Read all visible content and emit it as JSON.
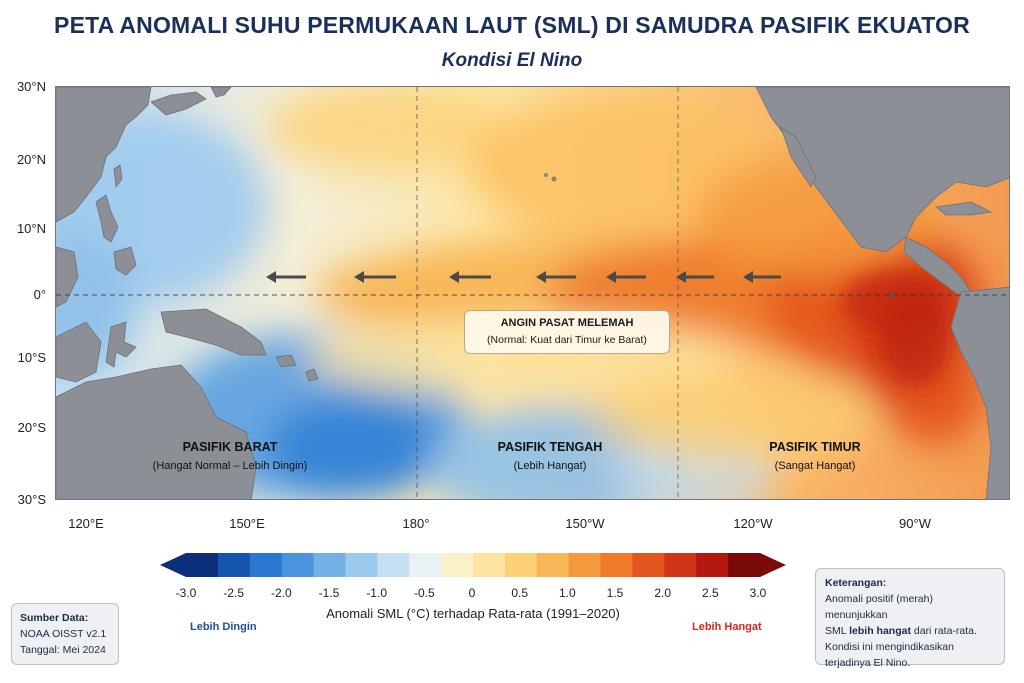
{
  "title": "PETA ANOMALI SUHU PERMUKAAN LAUT (SML) DI SAMUDRA PASIFIK EKUATOR",
  "subtitle": "Kondisi El Nino",
  "axes": {
    "lat_labels": [
      "30°N",
      "20°N",
      "10°N",
      "0°",
      "10°S",
      "20°S",
      "30°S"
    ],
    "lon_labels": [
      "120°E",
      "150°E",
      "180°",
      "150°W",
      "120°W",
      "90°W"
    ]
  },
  "regions": {
    "west": {
      "name": "PASIFIK BARAT",
      "desc": "(Hangat Normal – Lebih Dingin)"
    },
    "central": {
      "name": "PASIFIK TENGAH",
      "desc": "(Lebih Hangat)"
    },
    "east": {
      "name": "PASIFIK TIMUR",
      "desc": "(Sangat Hangat)"
    }
  },
  "wind": {
    "title": "ANGIN PASAT MELEMAH",
    "desc": "(Normal: Kuat dari Timur ke Barat)",
    "direction": "east-to-west"
  },
  "colorbar": {
    "ticks": [
      "-3.0",
      "-2.5",
      "-2.0",
      "-1.5",
      "-1.0",
      "-0.5",
      "0",
      "0.5",
      "1.0",
      "1.5",
      "2.0",
      "2.5",
      "3.0"
    ],
    "title": "Anomali SML (°C) terhadap Rata-rata (1991–2020)",
    "cold_label": "Lebih Dingin",
    "warm_label": "Lebih Hangat",
    "cold_color": "#1f4e9c",
    "warm_color": "#d7261e",
    "colors": [
      "#0b2f7a",
      "#1555b0",
      "#2a77cf",
      "#4a94dd",
      "#72b0e6",
      "#9cc9ee",
      "#c6e0f3",
      "#e9f1f4",
      "#fbf1c9",
      "#fde3a0",
      "#fcd178",
      "#f9b656",
      "#f59a3c",
      "#ef7b2b",
      "#e4561f",
      "#d13417",
      "#b2180f",
      "#7a0a08"
    ]
  },
  "source": {
    "heading": "Sumber Data:",
    "dataset": "NOAA OISST v2.1",
    "date": "Tanggal: Mei 2024"
  },
  "legend_note": {
    "heading": "Keterangan:",
    "line1": "Anomali positif (merah) menunjukkan",
    "line2_pre": "SML ",
    "line2_bold": "lebih hangat",
    "line2_post": " dari rata-rata.",
    "line3": "Kondisi ini mengindikasikan",
    "line4": "terjadinya El Nino."
  }
}
